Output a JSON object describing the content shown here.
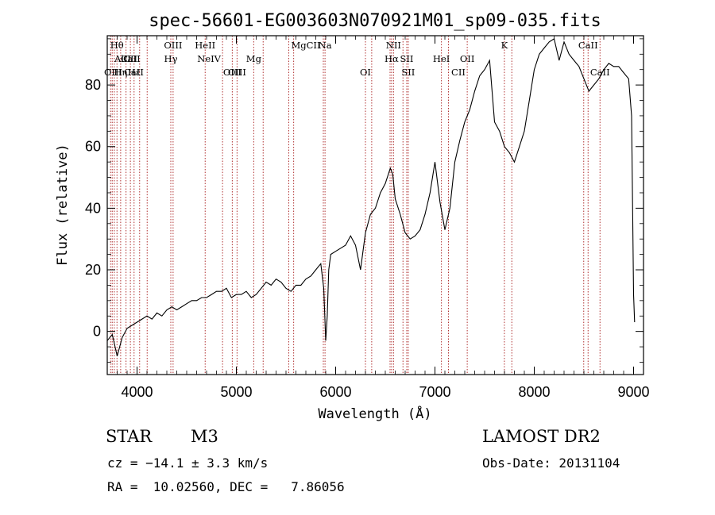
{
  "chart_data": {
    "type": "line",
    "title": "spec-56601-EG003603N070921M01_sp09-035.fits",
    "xlabel": "Wavelength (Å)",
    "ylabel": "Flux (relative)",
    "xlim": [
      3700,
      9100
    ],
    "ylim": [
      -14,
      96
    ],
    "xticks": [
      4000,
      5000,
      6000,
      7000,
      8000,
      9000
    ],
    "yticks": [
      0,
      20,
      40,
      60,
      80
    ],
    "grid": false,
    "series": [
      {
        "x": [
          3700,
          3750,
          3800,
          3850,
          3900,
          3950,
          4000,
          4050,
          4100,
          4150,
          4200,
          4250,
          4300,
          4350,
          4400,
          4450,
          4500,
          4550,
          4600,
          4650,
          4700,
          4750,
          4800,
          4850,
          4900,
          4950,
          5000,
          5050,
          5100,
          5150,
          5200,
          5250,
          5300,
          5350,
          5400,
          5450,
          5500,
          5550,
          5600,
          5650,
          5700,
          5750,
          5800,
          5850,
          5880,
          5900,
          5915,
          5930,
          5950,
          6000,
          6050,
          6100,
          6150,
          6200,
          6250,
          6300,
          6350,
          6400,
          6450,
          6500,
          6550,
          6575,
          6600,
          6650,
          6700,
          6750,
          6800,
          6850,
          6900,
          6950,
          7000,
          7050,
          7100,
          7150,
          7200,
          7250,
          7300,
          7350,
          7400,
          7450,
          7500,
          7550,
          7600,
          7650,
          7700,
          7750,
          7800,
          7850,
          7900,
          7950,
          8000,
          8050,
          8100,
          8150,
          8200,
          8250,
          8300,
          8350,
          8400,
          8450,
          8500,
          8550,
          8600,
          8650,
          8700,
          8750,
          8800,
          8850,
          8900,
          8950,
          8980,
          9000,
          9010
        ],
        "values": [
          -3,
          -1,
          -8,
          -2,
          1,
          2,
          3,
          4,
          5,
          4,
          6,
          5,
          7,
          8,
          7,
          8,
          9,
          10,
          10,
          11,
          11,
          12,
          13,
          13,
          14,
          11,
          12,
          12,
          13,
          11,
          12,
          14,
          16,
          15,
          17,
          16,
          14,
          13,
          15,
          15,
          17,
          18,
          20,
          22,
          14,
          -3,
          5,
          20,
          25,
          26,
          27,
          28,
          31,
          28,
          20,
          32,
          38,
          40,
          45,
          48,
          53,
          51,
          43,
          38,
          32,
          30,
          31,
          33,
          38,
          45,
          55,
          42,
          33,
          40,
          55,
          62,
          68,
          72,
          78,
          83,
          85,
          88,
          68,
          65,
          60,
          58,
          55,
          60,
          65,
          75,
          85,
          90,
          92,
          94,
          95,
          88,
          94,
          90,
          88,
          86,
          82,
          78,
          80,
          82,
          85,
          87,
          86,
          86,
          84,
          82,
          70,
          12,
          3
        ]
      }
    ],
    "spectral_lines": [
      {
        "label": "Hθ",
        "wave": 3798,
        "row": 0
      },
      {
        "label": "AlII",
        "wave": 3856,
        "row": 1
      },
      {
        "label": "OIII",
        "wave": 3760,
        "row": 2
      },
      {
        "label": "Hη",
        "wave": 3835,
        "row": 2
      },
      {
        "label": "CaII",
        "wave": 3934,
        "row": 1
      },
      {
        "label": "Hε",
        "wave": 3970,
        "row": 2
      },
      {
        "label": "CaII",
        "wave": 3968,
        "row": 2
      },
      {
        "label": "CII",
        "wave": 3933,
        "row": 1
      },
      {
        "label": "OIII",
        "wave": 4363,
        "row": 0
      },
      {
        "label": "Hγ",
        "wave": 4340,
        "row": 1
      },
      {
        "label": "HeII",
        "wave": 4686,
        "row": 0
      },
      {
        "label": "NeIV",
        "wave": 4725,
        "row": 1
      },
      {
        "label": "OIII",
        "wave": 4959,
        "row": 2
      },
      {
        "label": "OIII",
        "wave": 5007,
        "row": 2
      },
      {
        "label": "Mg",
        "wave": 5175,
        "row": 1
      },
      {
        "label": "MgCII",
        "wave": 5700,
        "row": 0
      },
      {
        "label": "Na",
        "wave": 5893,
        "row": 0
      },
      {
        "label": "NII",
        "wave": 6583,
        "row": 0
      },
      {
        "label": "Hα",
        "wave": 6563,
        "row": 1
      },
      {
        "label": "SII",
        "wave": 6716,
        "row": 1
      },
      {
        "label": "OI",
        "wave": 6300,
        "row": 2
      },
      {
        "label": "SII",
        "wave": 6731,
        "row": 2
      },
      {
        "label": "CII",
        "wave": 7236,
        "row": 2
      },
      {
        "label": "OII",
        "wave": 7325,
        "row": 1
      },
      {
        "label": "K",
        "wave": 7699,
        "row": 0
      },
      {
        "label": "HeI",
        "wave": 7065,
        "row": 1
      },
      {
        "label": "CaII",
        "wave": 8542,
        "row": 0
      },
      {
        "label": "CaII",
        "wave": 8662,
        "row": 2
      }
    ],
    "line_markers": [
      3734,
      3750,
      3771,
      3798,
      3835,
      3889,
      3933,
      3970,
      4026,
      4102,
      4340,
      4363,
      4686,
      4861,
      4959,
      5007,
      5175,
      5270,
      5528,
      5577,
      5876,
      5893,
      6300,
      6363,
      6548,
      6563,
      6583,
      6678,
      6716,
      6731,
      7065,
      7136,
      7325,
      7699,
      7774,
      8498,
      8542,
      8662
    ]
  },
  "info": {
    "class_label": "STAR",
    "subclass_label": "M3",
    "survey": "LAMOST DR2",
    "cz": "cz = −14.1 ± 3.3 km/s",
    "obs_date": "Obs-Date: 20131104",
    "coords": "RA =  10.02560, DEC =   7.86056"
  }
}
